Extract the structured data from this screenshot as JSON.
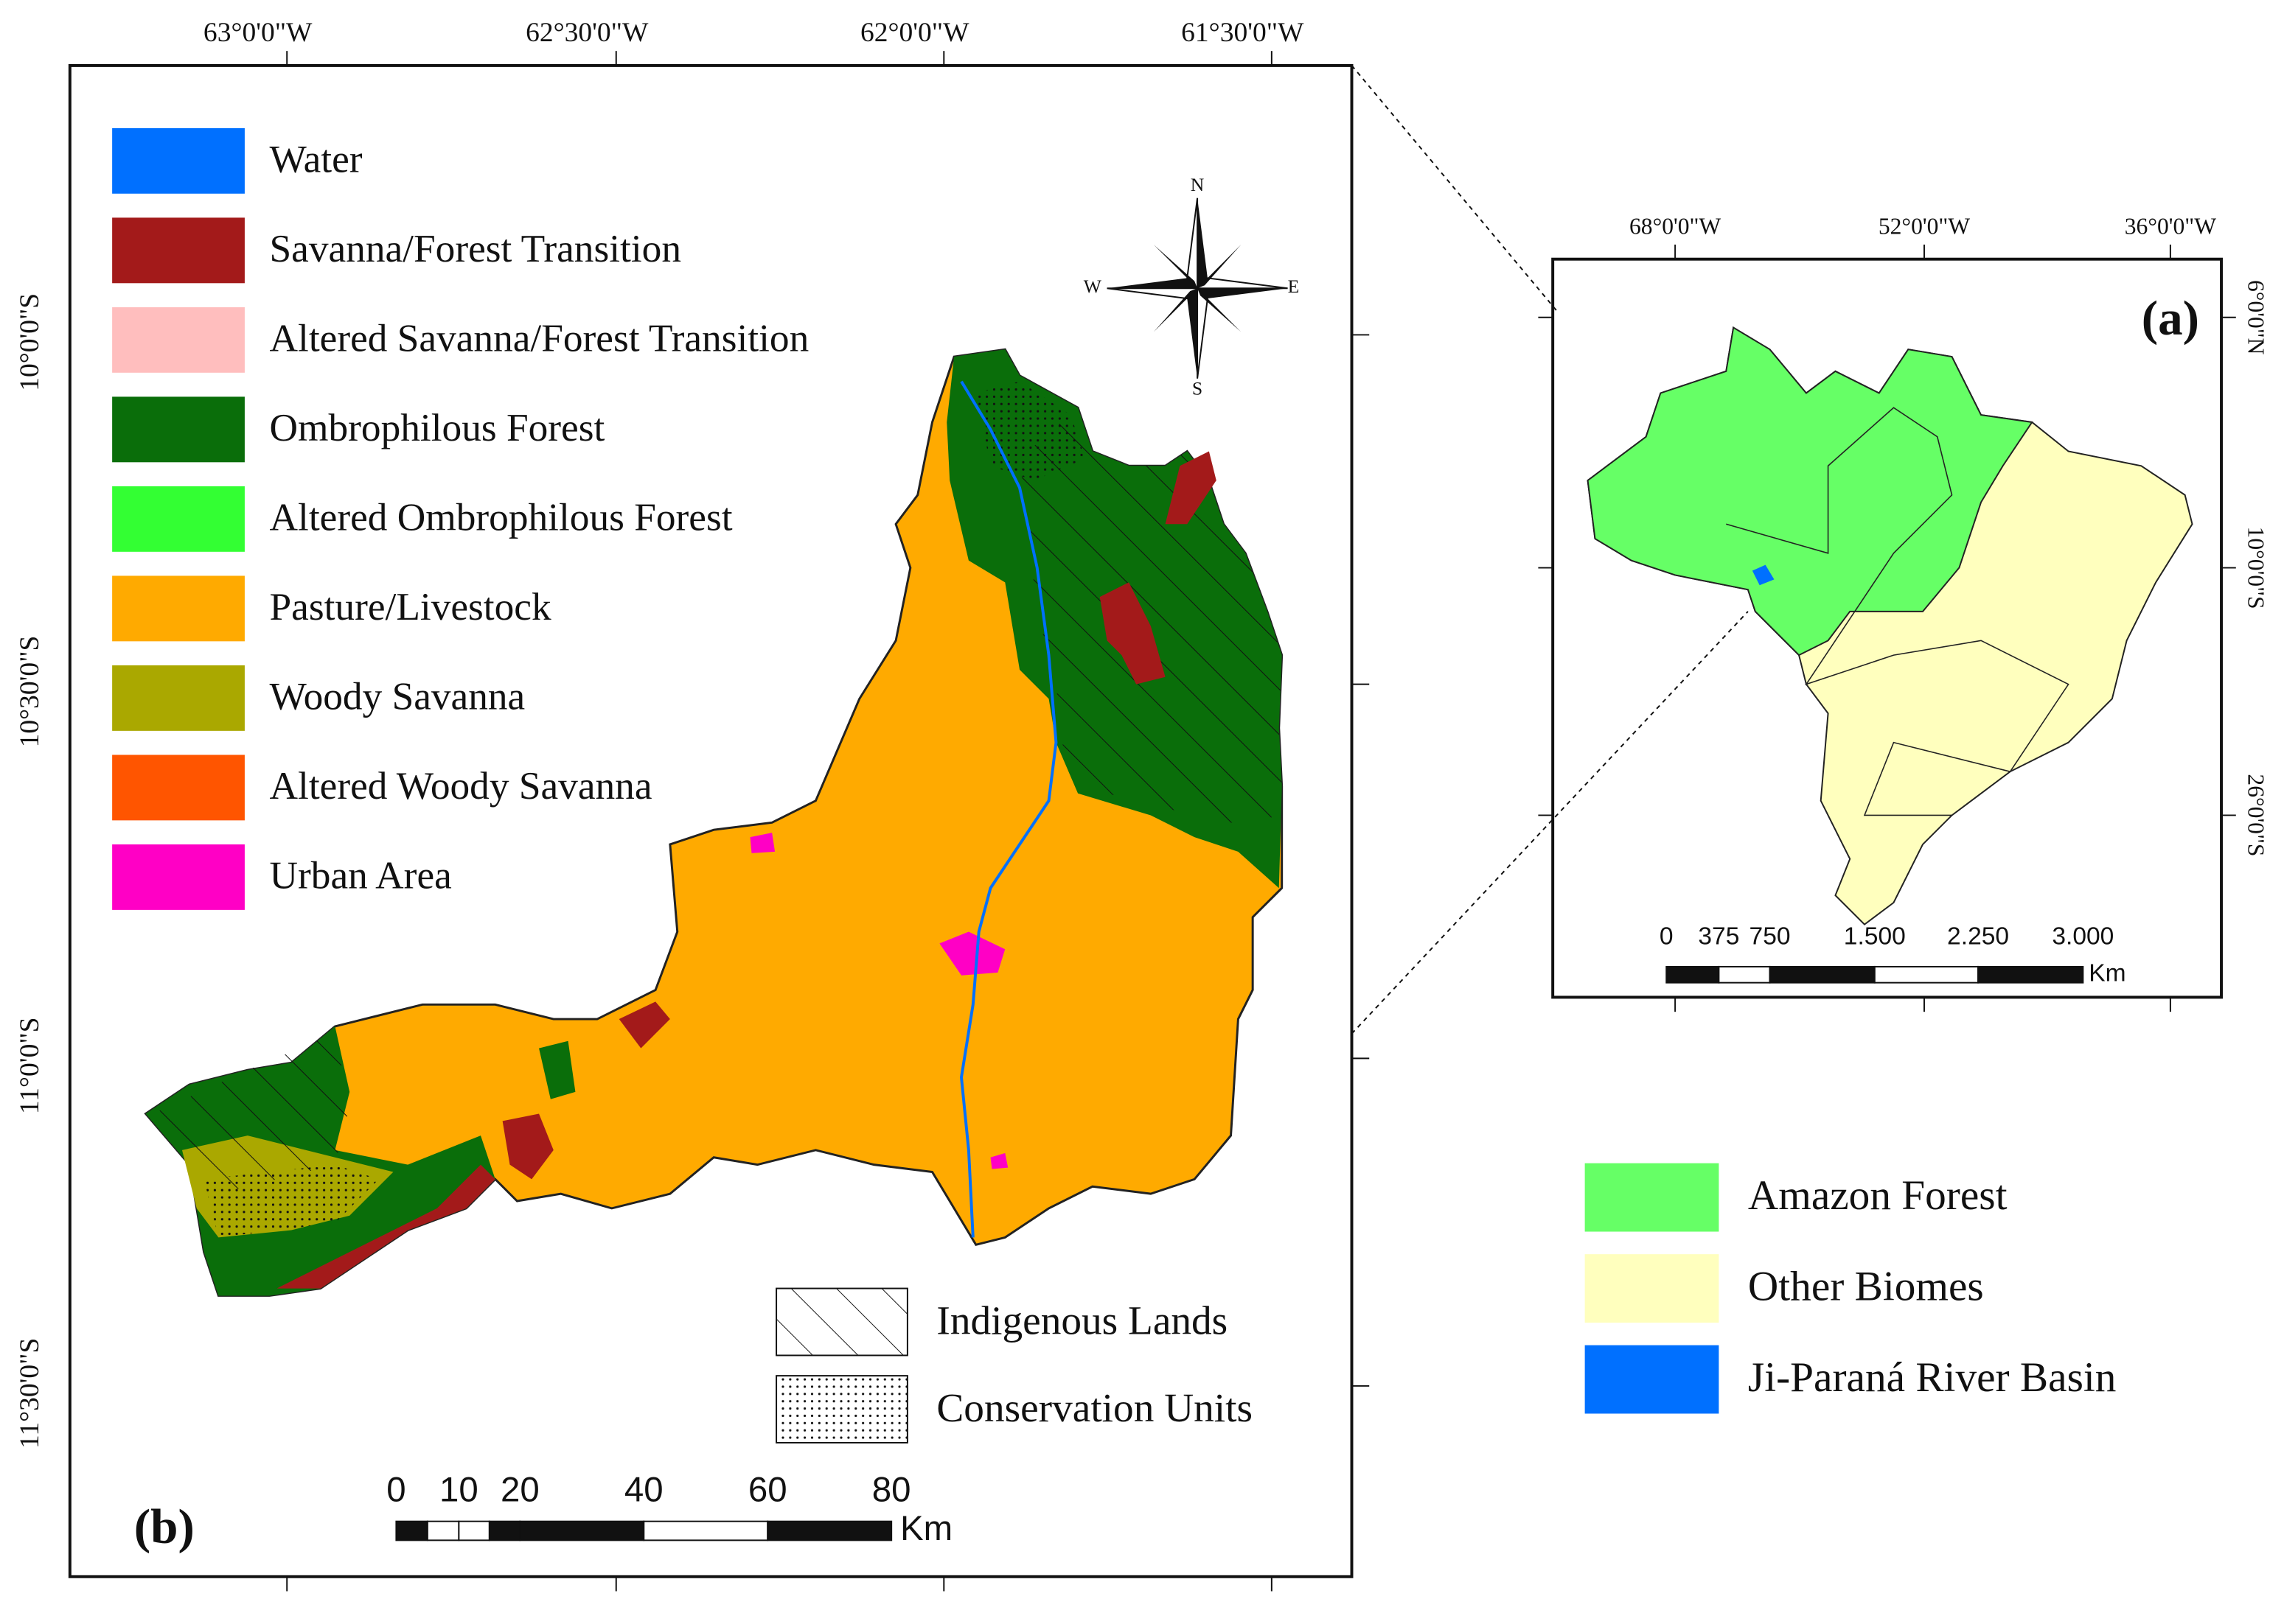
{
  "panel_b": {
    "label": "(b)",
    "x_ticks": [
      "63°0'0\"W",
      "62°30'0\"W",
      "62°0'0\"W",
      "61°30'0\"W"
    ],
    "y_ticks": [
      "10°0'0\"S",
      "10°30'0\"S",
      "11°0'0\"S",
      "11°30'0\"S"
    ],
    "legend": [
      {
        "label": "Water",
        "color": "#0070ff"
      },
      {
        "label": "Savanna/Forest Transition",
        "color": "#a31a1a"
      },
      {
        "label": "Altered Savanna/Forest Transition",
        "color": "#ffbebe"
      },
      {
        "label": "Ombrophilous Forest",
        "color": "#0a6e0a"
      },
      {
        "label": "Altered Ombrophilous Forest",
        "color": "#33ff33"
      },
      {
        "label": "Pasture/Livestock",
        "color": "#ffaa00"
      },
      {
        "label": "Woody Savanna",
        "color": "#aaa800"
      },
      {
        "label": "Altered Woody Savanna",
        "color": "#ff5500"
      },
      {
        "label": "Urban Area",
        "color": "#ff00c5"
      }
    ],
    "overlay_legend": [
      "Indigenous Lands",
      "Conservation Units"
    ],
    "compass": [
      "N",
      "S",
      "W",
      "E"
    ],
    "scale": {
      "labels": [
        "0",
        "10",
        "20",
        "40",
        "60",
        "80"
      ],
      "unit": "Km"
    }
  },
  "panel_a": {
    "label": "(a)",
    "x_ticks": [
      "68°0'0\"W",
      "52°0'0\"W",
      "36°0'0\"W"
    ],
    "y_ticks": [
      "6°0'0\"N",
      "10°0'0\"S",
      "26°0'0\"S"
    ],
    "scale": {
      "labels": [
        "0",
        "375",
        "750",
        "1.500",
        "2.250",
        "3.000"
      ],
      "unit": "Km"
    },
    "legend": [
      {
        "label": "Amazon Forest",
        "color": "#66ff66"
      },
      {
        "label": "Other Biomes",
        "color": "#ffffbe"
      },
      {
        "label": "Ji-Paraná River Basin",
        "color": "#0070ff"
      }
    ]
  }
}
